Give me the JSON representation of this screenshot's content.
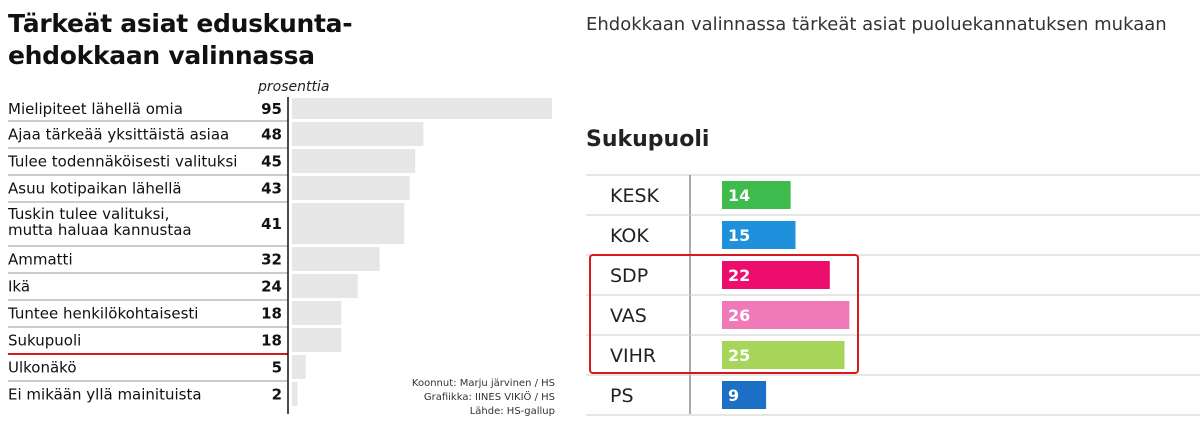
{
  "colors": {
    "bar_gray": "#e6e6e6",
    "highlight_line": "#d7191c",
    "highlight_box": "#d7191c",
    "KESK": "#3dbb4c",
    "KOK": "#1f90dc",
    "SDP": "#ec0d6c",
    "VAS": "#f07ab8",
    "VIHR": "#a6d55a",
    "PS": "#1b6fc4"
  },
  "chart_data": [
    {
      "type": "bar",
      "orientation": "horizontal",
      "title": "Tärkeät asiat eduskunta- ehdokkaan valinnassa",
      "title_lines": [
        "Tärkeät asiat eduskunta-",
        "ehdokkaan valinnassa"
      ],
      "unit_label": "prosenttia",
      "categories": [
        "Mielipiteet lähellä omia",
        "Ajaa tärkeää yksittäistä asiaa",
        "Tulee todennäköisesti valituksi",
        "Asuu kotipaikan lähellä",
        "Tuskin tulee valituksi, mutta haluaa kannustaa",
        "Ammatti",
        "Ikä",
        "Tuntee henkilökohtaisesti",
        "Sukupuoli",
        "Ulkonäkö",
        "Ei mikään yllä mainituista"
      ],
      "category_lines": [
        [
          "Mielipiteet lähellä omia"
        ],
        [
          "Ajaa tärkeää yksittäistä asiaa"
        ],
        [
          "Tulee todennäköisesti valituksi"
        ],
        [
          "Asuu kotipaikan lähellä"
        ],
        [
          "Tuskin tulee valituksi,",
          "mutta haluaa kannustaa"
        ],
        [
          "Ammatti"
        ],
        [
          "Ikä"
        ],
        [
          "Tuntee henkilökohtaisesti"
        ],
        [
          "Sukupuoli"
        ],
        [
          "Ulkonäkö"
        ],
        [
          "Ei mikään yllä mainituista"
        ]
      ],
      "values": [
        95,
        48,
        45,
        43,
        41,
        32,
        24,
        18,
        18,
        5,
        2
      ],
      "highlighted": "Sukupuoli",
      "credits": [
        "Koonnut: Marju järvinen / HS",
        "Grafiikka: IINES VIKIÖ / HS",
        "Lähde: HS-gallup"
      ]
    },
    {
      "type": "bar",
      "orientation": "horizontal",
      "title": "Ehdokkaan valinnassa tärkeät asiat puoluekannatuksen mukaan",
      "section": "Sukupuoli",
      "categories": [
        "KESK",
        "KOK",
        "SDP",
        "VAS",
        "VIHR",
        "PS"
      ],
      "values": [
        14,
        15,
        22,
        26,
        25,
        9
      ],
      "highlighted": [
        "SDP",
        "VAS",
        "VIHR"
      ]
    }
  ]
}
